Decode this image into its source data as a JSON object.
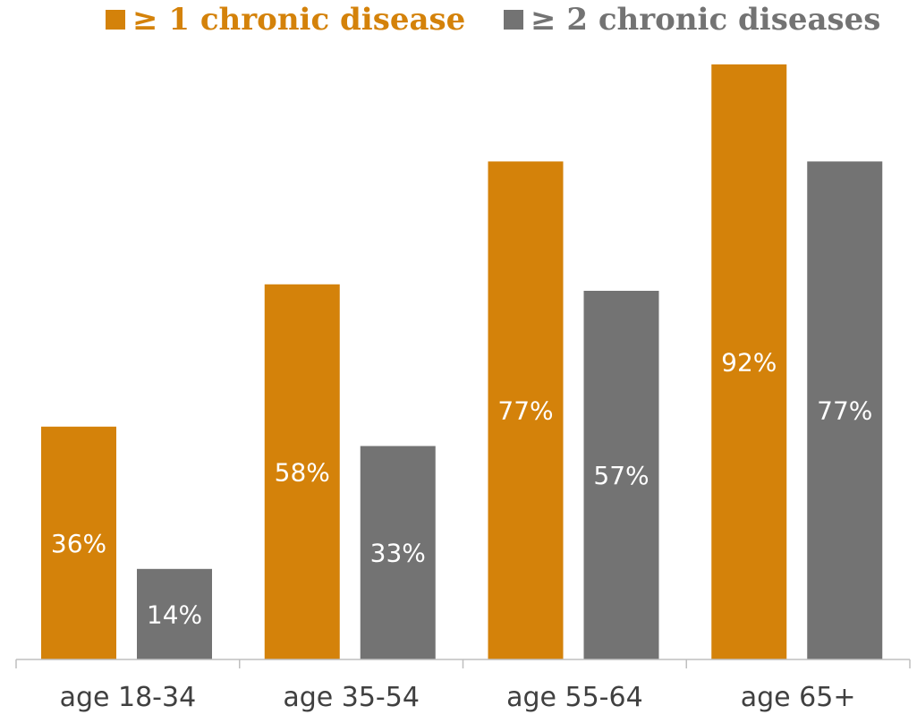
{
  "chart_data": {
    "type": "bar",
    "categories": [
      "age 18-34",
      "age 35-54",
      "age 55-64",
      "age 65+"
    ],
    "series": [
      {
        "name": "≥ 1 chronic disease",
        "values": [
          36,
          58,
          77,
          92
        ],
        "color": "#D4820A",
        "labels": [
          "36%",
          "58%",
          "77%",
          "92%"
        ]
      },
      {
        "name": "≥ 2 chronic diseases",
        "values": [
          14,
          33,
          57,
          77
        ],
        "color": "#737373",
        "labels": [
          "14%",
          "33%",
          "57%",
          "77%"
        ]
      }
    ],
    "ylim": [
      0,
      92
    ],
    "grid": false,
    "legend_position": "top",
    "axis_color": "#bfbfbf",
    "tick_label_color": "#404040",
    "data_label_color": "#ffffff"
  }
}
